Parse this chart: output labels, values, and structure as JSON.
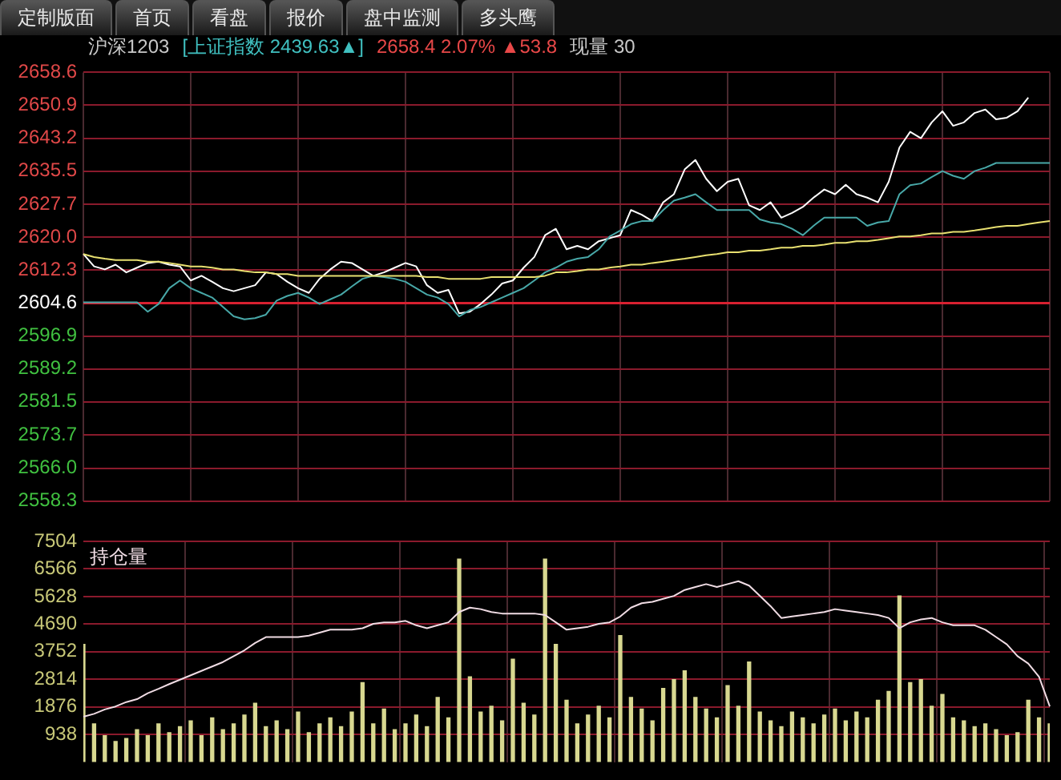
{
  "chart_data": [
    {
      "type": "line",
      "title": "沪深1203",
      "subtitle": "[上证指数 2439.63▲]",
      "annotations": [
        "2658.4  2.07%  ▲53.8",
        "现量 30",
        "定制版面",
        "首页",
        "看盘",
        "报价",
        "盘中监测",
        "多头鹰"
      ],
      "categories": [
        null,
        null,
        null,
        null,
        null,
        null,
        null,
        null,
        null,
        null,
        null,
        null,
        null,
        null,
        null,
        null,
        null,
        null,
        null,
        null,
        null,
        null,
        null,
        null,
        null,
        null,
        null,
        null,
        null,
        null,
        null,
        null,
        null,
        null,
        null,
        null,
        null,
        null,
        null,
        null,
        null,
        null,
        null,
        null,
        null,
        null,
        null,
        null,
        null,
        null,
        null,
        null,
        null,
        null,
        null,
        null,
        null,
        null,
        null,
        null,
        null,
        null,
        null,
        null,
        null,
        null,
        null,
        null,
        null,
        null,
        null,
        null,
        null,
        null,
        null,
        null,
        null,
        null,
        null,
        null,
        null,
        null,
        null,
        null,
        null,
        null,
        null,
        null,
        null,
        null,
        null
      ],
      "ylim": [
        2558.3,
        2658.6
      ],
      "yticks": [
        2658.6,
        2650.9,
        2643.2,
        2635.5,
        2627.7,
        {
          "value": 2620,
          "label": "2620.0"
        },
        2612.3,
        2604.6,
        2596.9,
        2589.2,
        2581.5,
        2573.7,
        {
          "value": 2566,
          "label": "2566.0"
        },
        2558.3
      ],
      "grid": true,
      "marker": "none",
      "tick_labels": "y",
      "ref_lines": [
        {
          "axis": "y",
          "value": 2604.6,
          "color": "#d82030"
        }
      ],
      "series": [
        {
          "color": "#e8e070",
          "values": [
            2616.1,
            2615.4,
            2615.0,
            2614.7,
            2614.7,
            2614.7,
            2614.3,
            2614.3,
            2614.0,
            2613.6,
            2613.2,
            2613.2,
            2612.9,
            2612.5,
            2612.5,
            2612.1,
            2611.8,
            2611.8,
            2611.4,
            2611.4,
            2611.0,
            2611.0,
            2611.0,
            2611.0,
            2611.0,
            2611.0,
            2611.0,
            2611.0,
            2611.0,
            2611.0,
            2611.0,
            2611.0,
            2610.7,
            2610.7,
            2610.3,
            2610.3,
            2610.3,
            2610.3,
            2610.7,
            2610.7,
            2610.7,
            2610.7,
            2610.7,
            2611.0,
            2611.8,
            2611.8,
            2612.1,
            2612.5,
            2612.5,
            2612.9,
            2613.2,
            2613.6,
            2613.6,
            2614.0,
            2614.3,
            2614.7,
            2615.0,
            2615.4,
            2615.8,
            2616.1,
            2616.5,
            2616.5,
            2616.9,
            2616.9,
            2617.2,
            2617.6,
            2617.6,
            2618.0,
            2618.0,
            2618.3,
            2618.7,
            2618.7,
            2619.1,
            2619.1,
            2619.4,
            2619.8,
            2620.2,
            2620.2,
            2620.5,
            2620.9,
            2620.9,
            2621.3,
            2621.3,
            2621.6,
            2622.0,
            2622.4,
            2622.7,
            2622.7,
            2623.1,
            2623.5,
            2623.8
          ]
        },
        {
          "color": "#48a8a8",
          "values": [
            2604.8,
            2604.8,
            2604.8,
            2604.8,
            2604.8,
            2604.8,
            2602.6,
            2604.4,
            2608.1,
            2609.9,
            2608.1,
            2607.0,
            2605.9,
            2603.7,
            2601.5,
            2600.8,
            2601.1,
            2601.9,
            2605.2,
            2606.3,
            2607.0,
            2605.9,
            2604.4,
            2605.5,
            2606.6,
            2608.5,
            2610.3,
            2611.0,
            2610.7,
            2610.3,
            2609.6,
            2608.1,
            2606.6,
            2605.9,
            2604.4,
            2601.5,
            2603.0,
            2603.7,
            2604.8,
            2605.9,
            2607.0,
            2608.1,
            2609.9,
            2611.8,
            2612.9,
            2614.3,
            2615.0,
            2615.4,
            2617.2,
            2620.2,
            2621.6,
            2623.1,
            2623.8,
            2623.8,
            2626.4,
            2628.6,
            2629.3,
            2630.1,
            2628.2,
            2626.4,
            2626.4,
            2626.4,
            2626.4,
            2624.2,
            2623.5,
            2623.1,
            2622.0,
            2620.5,
            2622.7,
            2624.6,
            2624.6,
            2624.6,
            2624.6,
            2622.7,
            2623.5,
            2623.8,
            2630.1,
            2632.2,
            2632.6,
            2634.1,
            2635.5,
            2634.4,
            2633.7,
            2635.5,
            2636.3,
            2637.4,
            2637.4,
            2637.4,
            2637.4,
            2637.4,
            2637.4
          ]
        },
        {
          "color": "#ffffff",
          "values": [
            2616.1,
            2613.2,
            2612.5,
            2613.6,
            2611.8,
            2612.9,
            2614.0,
            2614.3,
            2613.6,
            2613.2,
            2609.9,
            2611.0,
            2609.6,
            2608.1,
            2607.4,
            2608.1,
            2608.8,
            2611.8,
            2611.4,
            2609.6,
            2608.1,
            2607.0,
            2610.3,
            2612.5,
            2614.3,
            2614.0,
            2612.5,
            2611.0,
            2611.8,
            2612.9,
            2614.0,
            2613.2,
            2608.8,
            2607.0,
            2607.7,
            2602.2,
            2602.6,
            2604.4,
            2606.6,
            2609.2,
            2609.9,
            2612.9,
            2615.4,
            2620.5,
            2622.0,
            2617.2,
            2618.0,
            2617.2,
            2619.1,
            2619.8,
            2620.5,
            2626.4,
            2625.3,
            2623.8,
            2628.2,
            2630.1,
            2635.9,
            2638.1,
            2633.7,
            2630.8,
            2633.0,
            2633.7,
            2627.5,
            2626.4,
            2628.2,
            2624.6,
            2625.7,
            2627.1,
            2629.3,
            2631.2,
            2630.1,
            2632.3,
            2630.1,
            2629.3,
            2628.2,
            2633.0,
            2641.0,
            2644.7,
            2643.2,
            2646.9,
            2649.5,
            2646.1,
            2646.9,
            2649.1,
            2649.9,
            2647.6,
            2648.0,
            2649.5,
            2652.7,
            null,
            null
          ]
        }
      ]
    },
    {
      "type": "bar",
      "categories": [
        null,
        null,
        null,
        null,
        null,
        null,
        null,
        null,
        null,
        null,
        null,
        null,
        null,
        null,
        null,
        null,
        null,
        null,
        null,
        null,
        null,
        null,
        null,
        null,
        null,
        null,
        null,
        null,
        null,
        null,
        null,
        null,
        null,
        null,
        null,
        null,
        null,
        null,
        null,
        null,
        null,
        null,
        null,
        null,
        null,
        null,
        null,
        null,
        null,
        null,
        null,
        null,
        null,
        null,
        null,
        null,
        null,
        null,
        null,
        null,
        null,
        null,
        null,
        null,
        null,
        null,
        null,
        null,
        null,
        null,
        null,
        null,
        null,
        null,
        null,
        null,
        null,
        null,
        null,
        null,
        null,
        null,
        null,
        null,
        null,
        null,
        null,
        null,
        null,
        null,
        null
      ],
      "ylim": [
        0,
        7504
      ],
      "yticks": [
        7504,
        6566,
        5628,
        4690,
        3752,
        2814,
        1876,
        938
      ],
      "grid": true,
      "marker": "none",
      "tick_labels": "y",
      "legend": "top left",
      "series": [
        {
          "type": "bar",
          "color": "#d8d890",
          "values": [
            4000,
            1300,
            900,
            700,
            800,
            1100,
            900,
            1300,
            1000,
            1200,
            1400,
            900,
            1500,
            1100,
            1300,
            1600,
            2000,
            1200,
            1400,
            1100,
            1700,
            1000,
            1300,
            1500,
            1200,
            1700,
            2700,
            1300,
            1800,
            1100,
            1300,
            1600,
            1200,
            2200,
            1500,
            6900,
            2900,
            1700,
            1900,
            1400,
            3500,
            2000,
            1600,
            6900,
            4000,
            2100,
            1300,
            1600,
            1900,
            1500,
            4300,
            2200,
            1800,
            1400,
            2500,
            2800,
            3100,
            2200,
            1800,
            1500,
            2600,
            1900,
            3400,
            1700,
            1400,
            1200,
            1700,
            1500,
            1300,
            1600,
            1800,
            1400,
            1700,
            1500,
            2100,
            2400,
            5650,
            2700,
            2800,
            1900,
            2300,
            1500,
            1400,
            1200,
            1300,
            1100,
            900,
            1000,
            2100,
            1500,
            1300
          ]
        },
        {
          "type": "line",
          "name": "持仓量",
          "color": "#f0dce4",
          "values": [
            1540,
            1640,
            1790,
            1890,
            2040,
            2140,
            2340,
            2490,
            2650,
            2800,
            2950,
            3100,
            3250,
            3400,
            3600,
            3800,
            4050,
            4250,
            4250,
            4250,
            4250,
            4300,
            4400,
            4500,
            4500,
            4500,
            4550,
            4700,
            4750,
            4750,
            4800,
            4650,
            4550,
            4650,
            4750,
            5100,
            5250,
            5200,
            5100,
            5050,
            5050,
            5050,
            5050,
            5000,
            4750,
            4500,
            4550,
            4600,
            4700,
            4750,
            4950,
            5250,
            5400,
            5450,
            5550,
            5650,
            5850,
            5950,
            6050,
            5950,
            6050,
            6150,
            6000,
            5650,
            5300,
            4900,
            4950,
            5000,
            5050,
            5100,
            5200,
            5150,
            5100,
            5050,
            5000,
            4900,
            4550,
            4750,
            4850,
            4900,
            4750,
            4650,
            4650,
            4650,
            4500,
            4250,
            4000,
            3600,
            3350,
            2900,
            1890
          ]
        }
      ]
    }
  ]
}
